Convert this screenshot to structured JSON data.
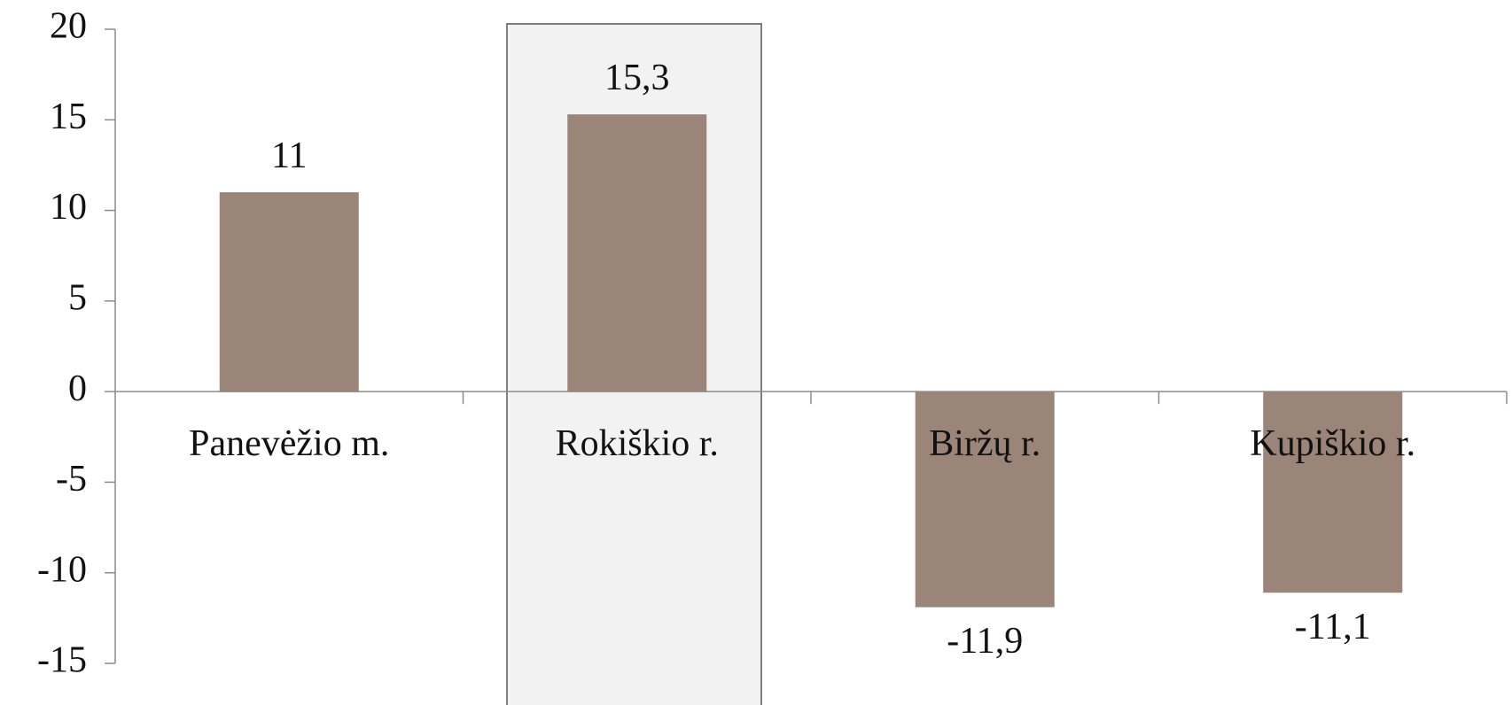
{
  "chart_data": {
    "type": "bar",
    "categories": [
      "Panevėžio m.",
      "Rokiškio r.",
      "Biržų r.",
      "Kupiškio r."
    ],
    "values": [
      11,
      15.3,
      -11.9,
      -11.1
    ],
    "value_labels": [
      "11",
      "15,3",
      "-11,9",
      "-11,1"
    ],
    "color": "#9b8579",
    "ylim": [
      -15,
      20
    ],
    "yticks": [
      -15,
      -10,
      -5,
      0,
      5,
      10,
      15,
      20
    ]
  }
}
